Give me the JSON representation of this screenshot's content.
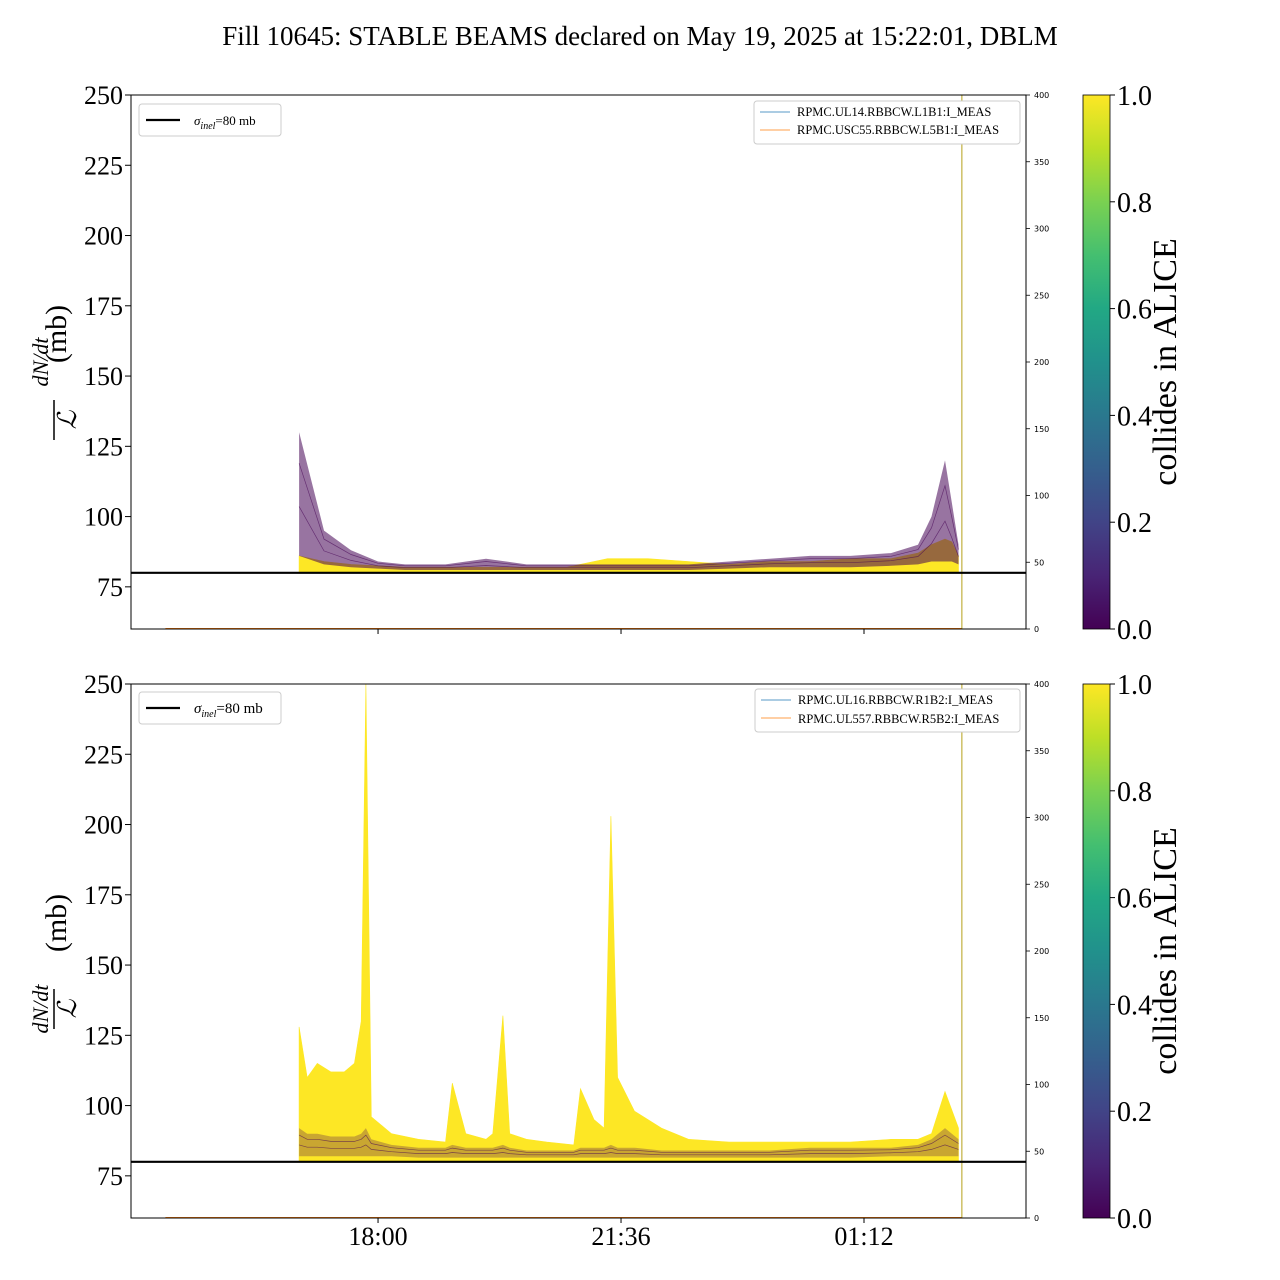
{
  "title": "Fill 10645: STABLE BEAMS declared on May 19, 2025 at 15:22:01, DBLM",
  "colors": {
    "ref_line": "#000000",
    "series_blue": "#1f77b4",
    "series_orange": "#ff7f0e",
    "yellow": "#fde725",
    "purple": "#440154"
  },
  "colorbar": {
    "label": "collides in ALICE",
    "ticks": [
      "0.0",
      "0.2",
      "0.4",
      "0.6",
      "0.8",
      "1.0"
    ],
    "colormap": "viridis"
  },
  "chart_data": [
    {
      "type": "line",
      "panel": "top",
      "ylabel_num": "dN/dt",
      "ylabel_den": "ℒ",
      "ylabel_unit": "(mb)",
      "ylim": [
        60,
        250
      ],
      "yticks": [
        75,
        100,
        125,
        150,
        175,
        200,
        225,
        250
      ],
      "xlim_hours": [
        14.34,
        27.6
      ],
      "xticks": [
        {
          "label": "18:00",
          "hour": 18.0
        },
        {
          "label": "21:36",
          "hour": 21.6
        },
        {
          "label": "01:12",
          "hour": 25.2
        }
      ],
      "y2lim": [
        0,
        400
      ],
      "y2ticks": [
        0,
        50,
        100,
        150,
        200,
        250,
        300,
        350,
        400
      ],
      "reference_line": {
        "label": "σinel=80 mb",
        "sigma": "σ",
        "sub": "inel",
        "rest": "=80 mb",
        "value": 80
      },
      "legend": [
        "RPMC.UL14.RBBCW.L1B1:I_MEAS",
        "RPMC.USC55.RBBCW.L5B1:I_MEAS"
      ],
      "band_x": [
        16.83,
        17.2,
        17.6,
        18.0,
        18.4,
        19.0,
        19.6,
        20.2,
        20.8,
        21.4,
        22.0,
        22.6,
        23.2,
        23.8,
        24.4,
        25.0,
        25.6,
        26.0,
        26.2,
        26.4,
        26.5,
        26.6
      ],
      "yellow_top": [
        86,
        84,
        83,
        82.5,
        82,
        82,
        82,
        82,
        82,
        85,
        85,
        84,
        83,
        84,
        84,
        85,
        85,
        87,
        90,
        92,
        91,
        86
      ],
      "purple_top": [
        130,
        95,
        88,
        84,
        83,
        83,
        85,
        83,
        83,
        83,
        83,
        83,
        84,
        85,
        86,
        86,
        87,
        90,
        100,
        120,
        105,
        90
      ],
      "purple_bottom": [
        86,
        83,
        82,
        81.5,
        81,
        81,
        81,
        81,
        81,
        81,
        81,
        81,
        81.5,
        82,
        82,
        82,
        82.5,
        83,
        84,
        84,
        84,
        83
      ],
      "marker_hour": 26.65
    },
    {
      "type": "line",
      "panel": "bottom",
      "ylabel_num": "dN/dt",
      "ylabel_den": "ℒ",
      "ylabel_unit": "(mb)",
      "ylim": [
        60,
        250
      ],
      "yticks": [
        75,
        100,
        125,
        150,
        175,
        200,
        225,
        250
      ],
      "xlim_hours": [
        14.34,
        27.6
      ],
      "xticks": [
        {
          "label": "18:00",
          "hour": 18.0
        },
        {
          "label": "21:36",
          "hour": 21.6
        },
        {
          "label": "01:12",
          "hour": 25.2
        }
      ],
      "y2lim": [
        0,
        400
      ],
      "y2ticks": [
        0,
        50,
        100,
        150,
        200,
        250,
        300,
        350,
        400
      ],
      "reference_line": {
        "label": "σinel=80 mb",
        "sigma": "σ",
        "sub": "inel",
        "rest": "=80 mb",
        "value": 80
      },
      "legend": [
        "RPMC.UL16.RBBCW.R1B2:I_MEAS",
        "RPMC.UL557.RBBCW.R5B2:I_MEAS"
      ],
      "band_x": [
        16.83,
        16.95,
        17.1,
        17.3,
        17.5,
        17.65,
        17.75,
        17.82,
        17.9,
        18.2,
        18.6,
        19.0,
        19.1,
        19.3,
        19.6,
        19.7,
        19.85,
        19.95,
        20.2,
        20.5,
        20.9,
        21.0,
        21.2,
        21.35,
        21.45,
        21.55,
        21.8,
        22.2,
        22.6,
        23.2,
        23.8,
        24.4,
        25.0,
        25.6,
        26.0,
        26.2,
        26.4,
        26.6
      ],
      "yellow_top": [
        128,
        110,
        115,
        112,
        112,
        115,
        130,
        250,
        96,
        90,
        88,
        87,
        108,
        90,
        88,
        90,
        132,
        90,
        88,
        87,
        86,
        106,
        95,
        92,
        203,
        110,
        98,
        92,
        88,
        87,
        87,
        87,
        87,
        88,
        88,
        90,
        105,
        92
      ],
      "purple_top": [
        92,
        90,
        90,
        89,
        89,
        89,
        90,
        92,
        88,
        86,
        85,
        85,
        86,
        85,
        85,
        85,
        86,
        85,
        84,
        84,
        84,
        85,
        85,
        85,
        86,
        85,
        85,
        84,
        84,
        84,
        84,
        85,
        85,
        85,
        86,
        88,
        92,
        88
      ],
      "purple_bottom": [
        82,
        82,
        82,
        82,
        82,
        82,
        82,
        82,
        82,
        82,
        81.5,
        81.5,
        81.5,
        81.5,
        81.5,
        81.5,
        81.5,
        81.5,
        81.5,
        81.5,
        81.5,
        81.5,
        81.5,
        81.5,
        81.5,
        81.5,
        81.5,
        81.5,
        81.5,
        81.5,
        81.5,
        81.5,
        81.5,
        82,
        82,
        82,
        82,
        82
      ],
      "marker_hour": 26.65
    }
  ]
}
